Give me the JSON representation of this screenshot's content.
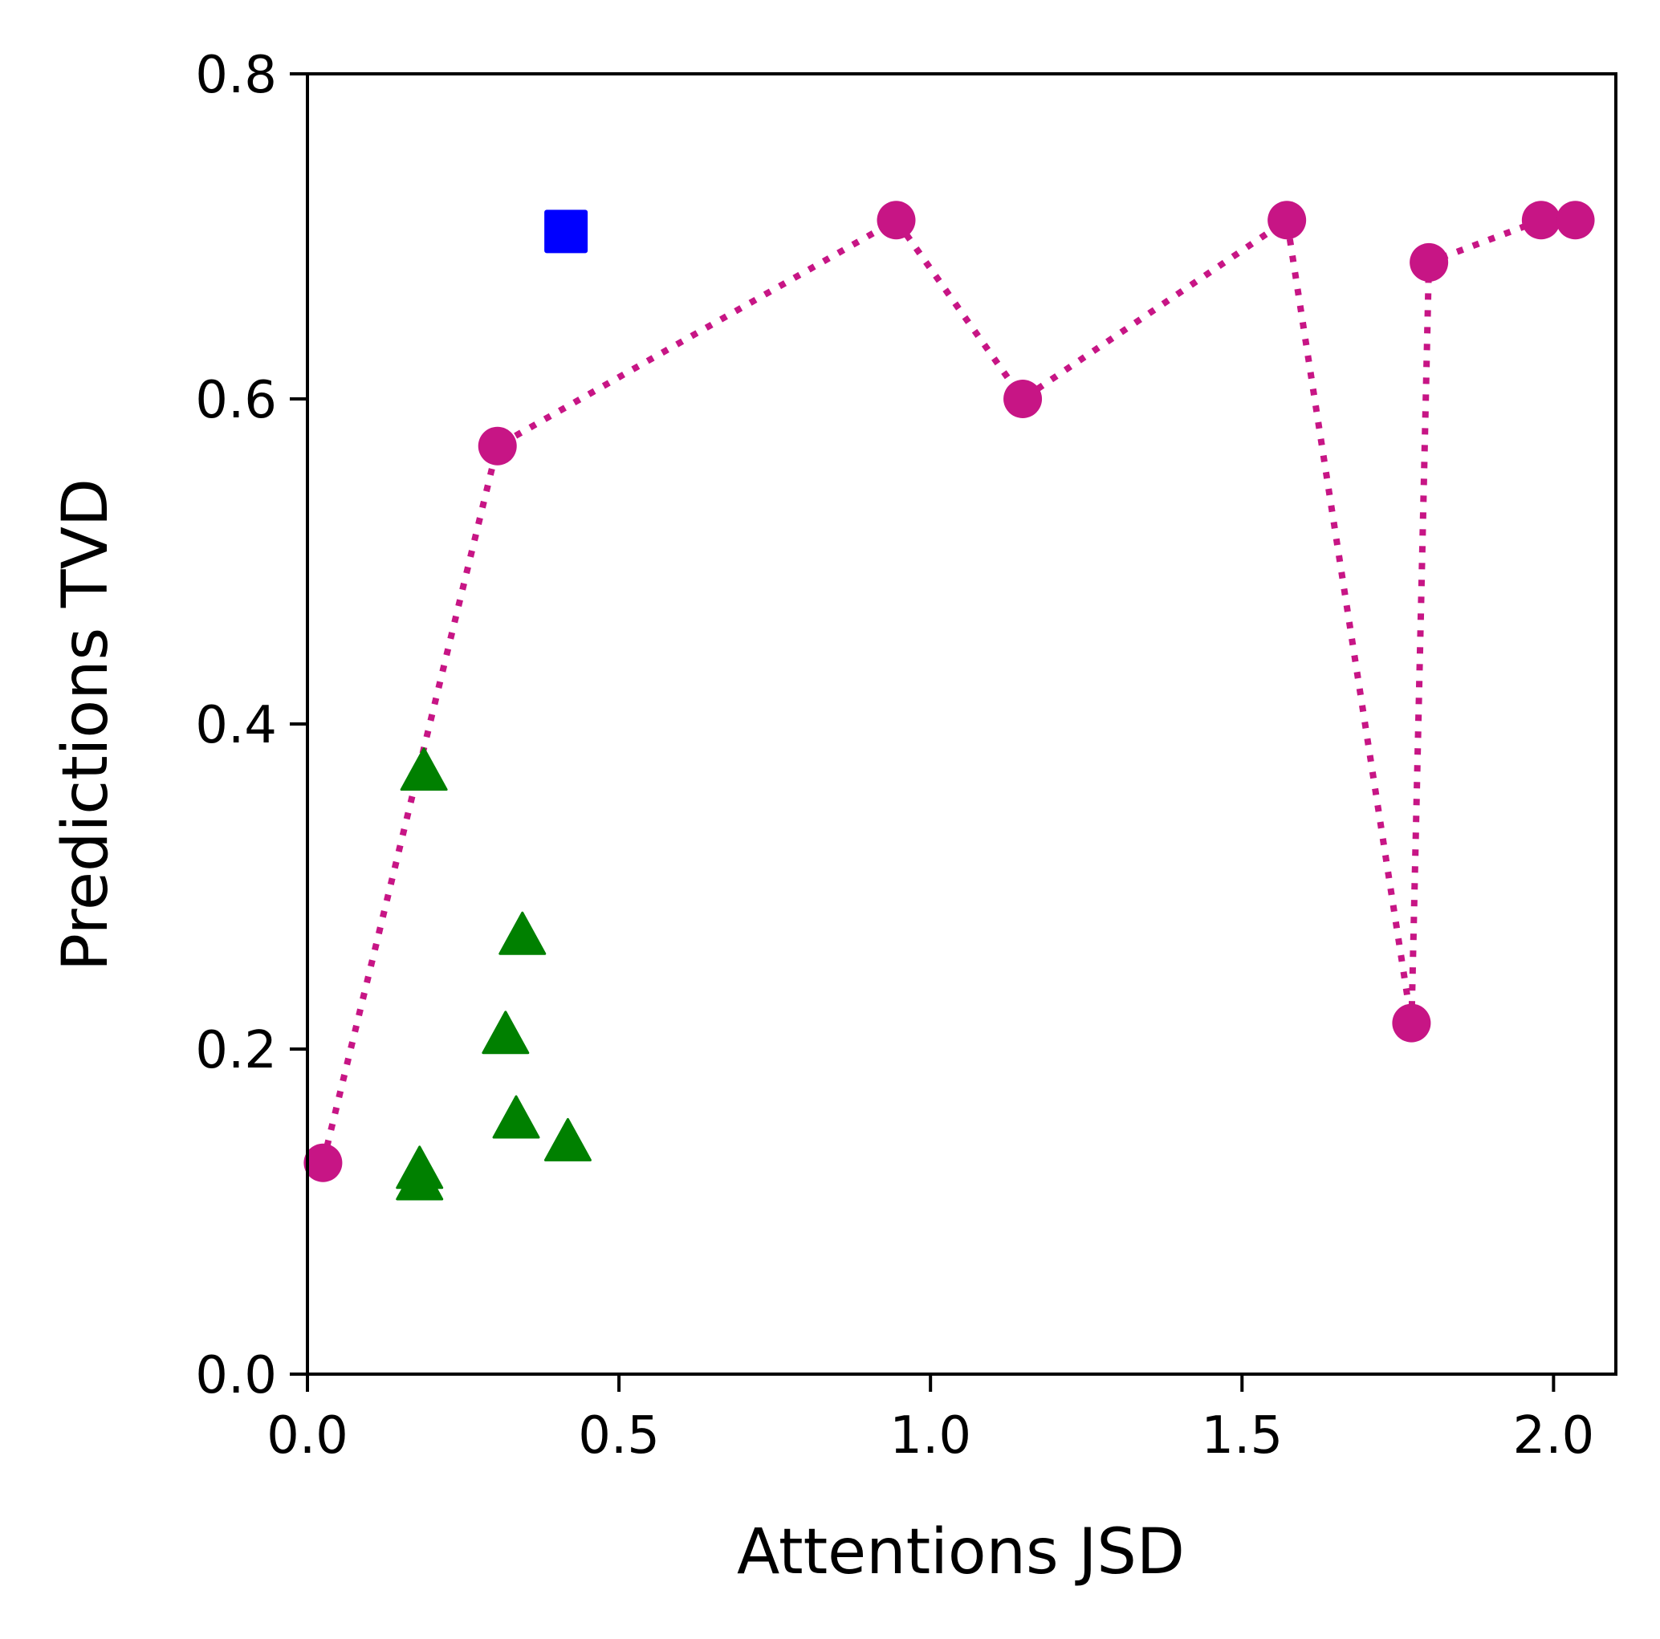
{
  "chart_data": {
    "type": "scatter",
    "title": "",
    "xlabel": "Attentions JSD",
    "ylabel": "Predictions TVD",
    "xlim": [
      0.0,
      2.1
    ],
    "ylim": [
      0.0,
      0.8
    ],
    "xticks": [
      0.0,
      0.5,
      1.0,
      1.5,
      2.0
    ],
    "xtick_labels": [
      "0.0",
      "0.5",
      "1.0",
      "1.5",
      "2.0"
    ],
    "yticks": [
      0.0,
      0.2,
      0.4,
      0.6,
      0.8
    ],
    "ytick_labels": [
      "0.0",
      "0.2",
      "0.4",
      "0.6",
      "0.8"
    ],
    "grid": false,
    "series": [
      {
        "name": "magenta circles (dotted line)",
        "marker": "circle",
        "line": "dotted",
        "color": "#c71585",
        "x": [
          0.025,
          0.305,
          0.945,
          1.148,
          1.572,
          1.772,
          1.8,
          1.98,
          2.035
        ],
        "y": [
          0.13,
          0.571,
          0.71,
          0.6,
          0.71,
          0.216,
          0.684,
          0.71,
          0.71
        ]
      },
      {
        "name": "green triangles",
        "marker": "triangle",
        "line": "none",
        "color": "#008000",
        "x": [
          0.187,
          0.18,
          0.18,
          0.345,
          0.318,
          0.335,
          0.418
        ],
        "y": [
          0.371,
          0.126,
          0.119,
          0.27,
          0.209,
          0.157,
          0.143
        ]
      },
      {
        "name": "blue square",
        "marker": "square",
        "line": "none",
        "color": "#0000ff",
        "x": [
          0.415
        ],
        "y": [
          0.703
        ]
      }
    ]
  }
}
